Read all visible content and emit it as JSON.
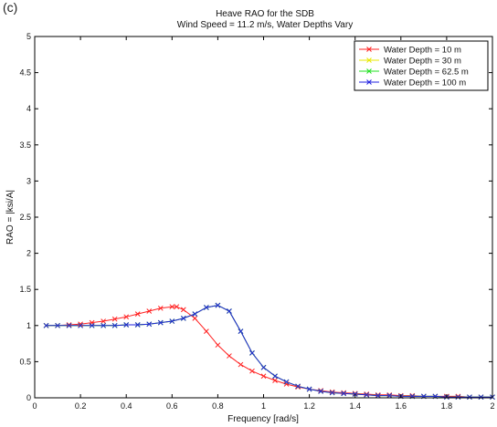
{
  "panel_label": "(c)",
  "chart_data": {
    "type": "line",
    "title": "Heave RAO for the SDB",
    "subtitle": "Wind Speed = 11.2 m/s, Water Depths Vary",
    "xlabel": "Frequency [rad/s]",
    "ylabel": "RAO = |ksi/A|",
    "xlim": [
      0,
      2
    ],
    "ylim": [
      0,
      5
    ],
    "xticks": [
      0,
      0.2,
      0.4,
      0.6,
      0.8,
      1,
      1.2,
      1.4,
      1.6,
      1.8,
      2
    ],
    "yticks": [
      0,
      0.5,
      1,
      1.5,
      2,
      2.5,
      3,
      3.5,
      4,
      4.5,
      5
    ],
    "grid": false,
    "legend_position": "top-right",
    "marker": "x",
    "series": [
      {
        "name": "Water Depth = 10 m",
        "color": "#ff2020",
        "x": [
          0.05,
          0.1,
          0.15,
          0.2,
          0.25,
          0.3,
          0.35,
          0.4,
          0.45,
          0.5,
          0.55,
          0.6,
          0.62,
          0.65,
          0.7,
          0.75,
          0.8,
          0.85,
          0.9,
          0.95,
          1.0,
          1.05,
          1.1,
          1.15,
          1.2,
          1.25,
          1.3,
          1.35,
          1.4,
          1.45,
          1.5,
          1.55,
          1.6,
          1.65,
          1.7,
          1.75,
          1.8,
          1.85,
          1.9,
          1.95,
          2.0
        ],
        "y": [
          1.0,
          1.0,
          1.01,
          1.02,
          1.04,
          1.06,
          1.09,
          1.12,
          1.16,
          1.2,
          1.24,
          1.26,
          1.26,
          1.22,
          1.1,
          0.92,
          0.73,
          0.58,
          0.46,
          0.37,
          0.3,
          0.24,
          0.19,
          0.15,
          0.12,
          0.1,
          0.08,
          0.07,
          0.06,
          0.05,
          0.04,
          0.04,
          0.03,
          0.03,
          0.02,
          0.02,
          0.02,
          0.02,
          0.01,
          0.01,
          0.01
        ]
      },
      {
        "name": "Water Depth = 30 m",
        "color": "#e8e800",
        "x": [
          0.05,
          0.1,
          0.15,
          0.2,
          0.25,
          0.3,
          0.35,
          0.4,
          0.45,
          0.5,
          0.55,
          0.6,
          0.65,
          0.7,
          0.75,
          0.8,
          0.85,
          0.9,
          0.95,
          1.0,
          1.05,
          1.1,
          1.15,
          1.2,
          1.25,
          1.3,
          1.35,
          1.4,
          1.45,
          1.5,
          1.55,
          1.6,
          1.65,
          1.7,
          1.75,
          1.8,
          1.85,
          1.9,
          1.95,
          2.0
        ],
        "y": [
          1.0,
          1.0,
          1.0,
          1.0,
          1.0,
          1.0,
          1.0,
          1.01,
          1.01,
          1.02,
          1.04,
          1.06,
          1.1,
          1.16,
          1.25,
          1.28,
          1.2,
          0.92,
          0.62,
          0.42,
          0.3,
          0.22,
          0.16,
          0.12,
          0.09,
          0.07,
          0.06,
          0.05,
          0.04,
          0.03,
          0.03,
          0.02,
          0.02,
          0.02,
          0.02,
          0.01,
          0.01,
          0.01,
          0.01,
          0.01
        ]
      },
      {
        "name": "Water Depth = 62.5 m",
        "color": "#20e020",
        "x": [
          0.05,
          0.1,
          0.15,
          0.2,
          0.25,
          0.3,
          0.35,
          0.4,
          0.45,
          0.5,
          0.55,
          0.6,
          0.65,
          0.7,
          0.75,
          0.8,
          0.85,
          0.9,
          0.95,
          1.0,
          1.05,
          1.1,
          1.15,
          1.2,
          1.25,
          1.3,
          1.35,
          1.4,
          1.45,
          1.5,
          1.55,
          1.6,
          1.65,
          1.7,
          1.75,
          1.8,
          1.85,
          1.9,
          1.95,
          2.0
        ],
        "y": [
          1.0,
          1.0,
          1.0,
          1.0,
          1.0,
          1.0,
          1.0,
          1.01,
          1.01,
          1.02,
          1.04,
          1.06,
          1.1,
          1.16,
          1.25,
          1.28,
          1.2,
          0.92,
          0.62,
          0.42,
          0.3,
          0.22,
          0.16,
          0.12,
          0.09,
          0.07,
          0.06,
          0.05,
          0.04,
          0.03,
          0.03,
          0.02,
          0.02,
          0.02,
          0.02,
          0.01,
          0.01,
          0.01,
          0.01,
          0.01
        ]
      },
      {
        "name": "Water Depth = 100 m",
        "color": "#2020e0",
        "x": [
          0.05,
          0.1,
          0.15,
          0.2,
          0.25,
          0.3,
          0.35,
          0.4,
          0.45,
          0.5,
          0.55,
          0.6,
          0.65,
          0.7,
          0.75,
          0.8,
          0.85,
          0.9,
          0.95,
          1.0,
          1.05,
          1.1,
          1.15,
          1.2,
          1.25,
          1.3,
          1.35,
          1.4,
          1.45,
          1.5,
          1.55,
          1.6,
          1.65,
          1.7,
          1.75,
          1.8,
          1.85,
          1.9,
          1.95,
          2.0
        ],
        "y": [
          1.0,
          1.0,
          1.0,
          1.0,
          1.0,
          1.0,
          1.0,
          1.01,
          1.01,
          1.02,
          1.04,
          1.06,
          1.1,
          1.16,
          1.25,
          1.28,
          1.2,
          0.92,
          0.62,
          0.42,
          0.3,
          0.22,
          0.16,
          0.12,
          0.09,
          0.07,
          0.06,
          0.05,
          0.04,
          0.03,
          0.03,
          0.02,
          0.02,
          0.02,
          0.02,
          0.01,
          0.01,
          0.01,
          0.01,
          0.01
        ]
      }
    ]
  }
}
